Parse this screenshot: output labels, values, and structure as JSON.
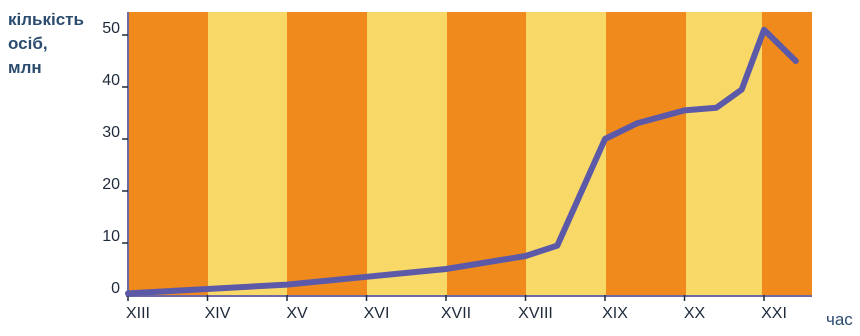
{
  "chart_data": {
    "type": "line",
    "ylabel": "кількість\nосіб,\nмлн",
    "xlabel": "час",
    "x_ticks": [
      "XIII",
      "XIV",
      "XV",
      "XVI",
      "XVII",
      "XVIII",
      "XIX",
      "XX",
      "XXI"
    ],
    "ylim": [
      0,
      55
    ],
    "y_ticks": [
      0,
      10,
      20,
      30,
      40,
      50
    ],
    "grid": false,
    "background": "alternating vertical stripes (orange / yellow)",
    "series": [
      {
        "points": [
          {
            "x": "XIII",
            "y": 0.3
          },
          {
            "x": "XV",
            "y": 2
          },
          {
            "x": "XVI",
            "y": 3.5
          },
          {
            "x": "XVII",
            "y": 5
          },
          {
            "x": "XVIII",
            "y": 7.5
          },
          {
            "x": "XVIII+",
            "y": 9.5
          },
          {
            "x": "XIX",
            "y": 30
          },
          {
            "x": "XIX+",
            "y": 33
          },
          {
            "x": "XX",
            "y": 35.5
          },
          {
            "x": "XX+",
            "y": 36
          },
          {
            "x": "XXI-",
            "y": 39.5
          },
          {
            "x": "XXI",
            "y": 51
          },
          {
            "x": "XXI+",
            "y": 45
          }
        ],
        "color": "#5c5aa8"
      }
    ]
  },
  "colors": {
    "stripe_orange": "#f08a1c",
    "stripe_yellow": "#f8d867",
    "line": "#5c5aa8",
    "axis": "#6d6aa6",
    "label": "#2b4c6f"
  }
}
